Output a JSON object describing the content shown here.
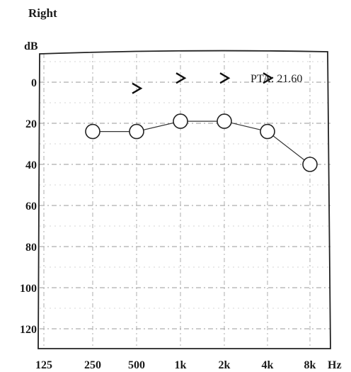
{
  "chart_data": {
    "type": "line",
    "title": "Right",
    "ylabel": "dB",
    "xlabel": "Hz",
    "x_categories": [
      "125",
      "250",
      "500",
      "1k",
      "2k",
      "4k",
      "8k"
    ],
    "x_values_hz": [
      125,
      250,
      500,
      1000,
      2000,
      4000,
      8000
    ],
    "y_ticks": [
      0,
      20,
      40,
      60,
      80,
      100,
      120
    ],
    "ylim": [
      -10,
      125
    ],
    "y_inverted": true,
    "grid": true,
    "series": [
      {
        "marker": "circle",
        "connected": true,
        "points": [
          {
            "x": "250",
            "y": 24
          },
          {
            "x": "500",
            "y": 24
          },
          {
            "x": "1k",
            "y": 19
          },
          {
            "x": "2k",
            "y": 19
          },
          {
            "x": "4k",
            "y": 24
          },
          {
            "x": "8k",
            "y": 40
          }
        ]
      },
      {
        "marker": "angle",
        "connected": false,
        "points": [
          {
            "x": "500",
            "y": 3
          },
          {
            "x": "1k",
            "y": -2
          },
          {
            "x": "2k",
            "y": -2
          },
          {
            "x": "4k",
            "y": -2
          }
        ]
      }
    ],
    "annotation": "PTA: 21.60"
  }
}
